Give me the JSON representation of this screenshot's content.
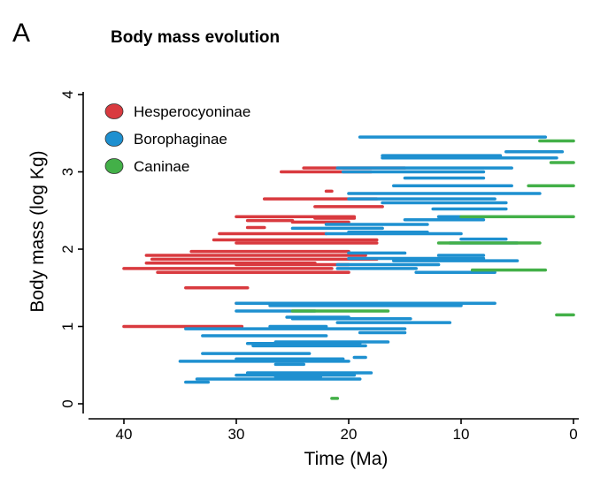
{
  "chart_data": {
    "type": "range",
    "panel_letter": "A",
    "title": "Body mass evolution",
    "xlabel": "Time (Ma)",
    "ylabel": "Body mass (log Kg)",
    "x_reversed": true,
    "xlim": [
      43,
      -1
    ],
    "ylim": [
      -0.1,
      4.1
    ],
    "x_ticks": [
      40,
      30,
      20,
      10,
      0
    ],
    "y_ticks": [
      0,
      1,
      2,
      3,
      4
    ],
    "grid": false,
    "legend_position": "top-left",
    "series": [
      {
        "name": "Hesperocyoninae",
        "color": "#d93a3f",
        "segments": [
          [
            24,
            15,
            3.05
          ],
          [
            26,
            18,
            3.0
          ],
          [
            22,
            21.5,
            2.75
          ],
          [
            27.5,
            17.5,
            2.65
          ],
          [
            23,
            17,
            2.55
          ],
          [
            30,
            19.5,
            2.42
          ],
          [
            23,
            19.5,
            2.4
          ],
          [
            29,
            25,
            2.37
          ],
          [
            25,
            20,
            2.35
          ],
          [
            29,
            27.5,
            2.28
          ],
          [
            31.5,
            22,
            2.2
          ],
          [
            32,
            17.5,
            2.12
          ],
          [
            30,
            17.5,
            2.08
          ],
          [
            34,
            20,
            1.97
          ],
          [
            38,
            18.5,
            1.92
          ],
          [
            37.5,
            17.5,
            1.87
          ],
          [
            38,
            23,
            1.82
          ],
          [
            30,
            20,
            1.8
          ],
          [
            40,
            21.5,
            1.75
          ],
          [
            37,
            20,
            1.7
          ],
          [
            34.5,
            29,
            1.5
          ],
          [
            30,
            28.5,
            1.3
          ],
          [
            40,
            29.5,
            1.0
          ]
        ]
      },
      {
        "name": "Borophaginae",
        "color": "#1e90d0",
        "segments": [
          [
            19,
            2.5,
            3.45
          ],
          [
            6,
            1,
            3.26
          ],
          [
            17,
            6.5,
            3.21
          ],
          [
            17,
            1.5,
            3.18
          ],
          [
            21,
            5.5,
            3.05
          ],
          [
            20.5,
            8,
            3.0
          ],
          [
            15,
            8,
            2.92
          ],
          [
            16,
            5.5,
            2.82
          ],
          [
            20,
            3,
            2.72
          ],
          [
            20,
            7,
            2.65
          ],
          [
            17,
            6,
            2.6
          ],
          [
            12.5,
            6,
            2.52
          ],
          [
            12,
            1,
            2.42
          ],
          [
            15,
            8,
            2.38
          ],
          [
            22,
            13,
            2.32
          ],
          [
            25,
            17,
            2.27
          ],
          [
            20,
            13,
            2.22
          ],
          [
            22,
            10,
            2.2
          ],
          [
            10,
            6,
            2.13
          ],
          [
            11,
            5,
            2.08
          ],
          [
            20,
            15,
            1.95
          ],
          [
            12,
            8,
            1.92
          ],
          [
            20,
            8,
            1.88
          ],
          [
            16,
            5,
            1.85
          ],
          [
            21,
            12,
            1.8
          ],
          [
            21,
            14,
            1.75
          ],
          [
            14,
            7,
            1.7
          ],
          [
            30,
            7,
            1.3
          ],
          [
            27,
            10,
            1.27
          ],
          [
            30,
            23,
            1.2
          ],
          [
            25.5,
            20,
            1.12
          ],
          [
            25,
            14.5,
            1.1
          ],
          [
            21,
            11,
            1.05
          ],
          [
            27,
            22,
            1.0
          ],
          [
            34.5,
            15,
            0.97
          ],
          [
            19,
            15,
            0.92
          ],
          [
            33,
            22,
            0.88
          ],
          [
            26.5,
            16.5,
            0.8
          ],
          [
            29,
            19,
            0.78
          ],
          [
            28.5,
            18.5,
            0.75
          ],
          [
            33,
            23.5,
            0.65
          ],
          [
            19.5,
            18.5,
            0.6
          ],
          [
            30,
            20.5,
            0.58
          ],
          [
            35,
            20,
            0.55
          ],
          [
            26.5,
            24,
            0.51
          ],
          [
            29,
            18,
            0.4
          ],
          [
            30,
            19.5,
            0.37
          ],
          [
            26.5,
            22.5,
            0.35
          ],
          [
            33.5,
            19,
            0.32
          ],
          [
            34.5,
            32.5,
            0.28
          ]
        ]
      },
      {
        "name": "Caninae",
        "color": "#43b048",
        "segments": [
          [
            3,
            0,
            3.4
          ],
          [
            2,
            0,
            3.12
          ],
          [
            4,
            0,
            2.82
          ],
          [
            10,
            0,
            2.42
          ],
          [
            12,
            3,
            2.08
          ],
          [
            9,
            2.5,
            1.73
          ],
          [
            25,
            16.5,
            1.2
          ],
          [
            1.5,
            0,
            1.15
          ],
          [
            21.5,
            21,
            0.07
          ]
        ]
      }
    ]
  }
}
